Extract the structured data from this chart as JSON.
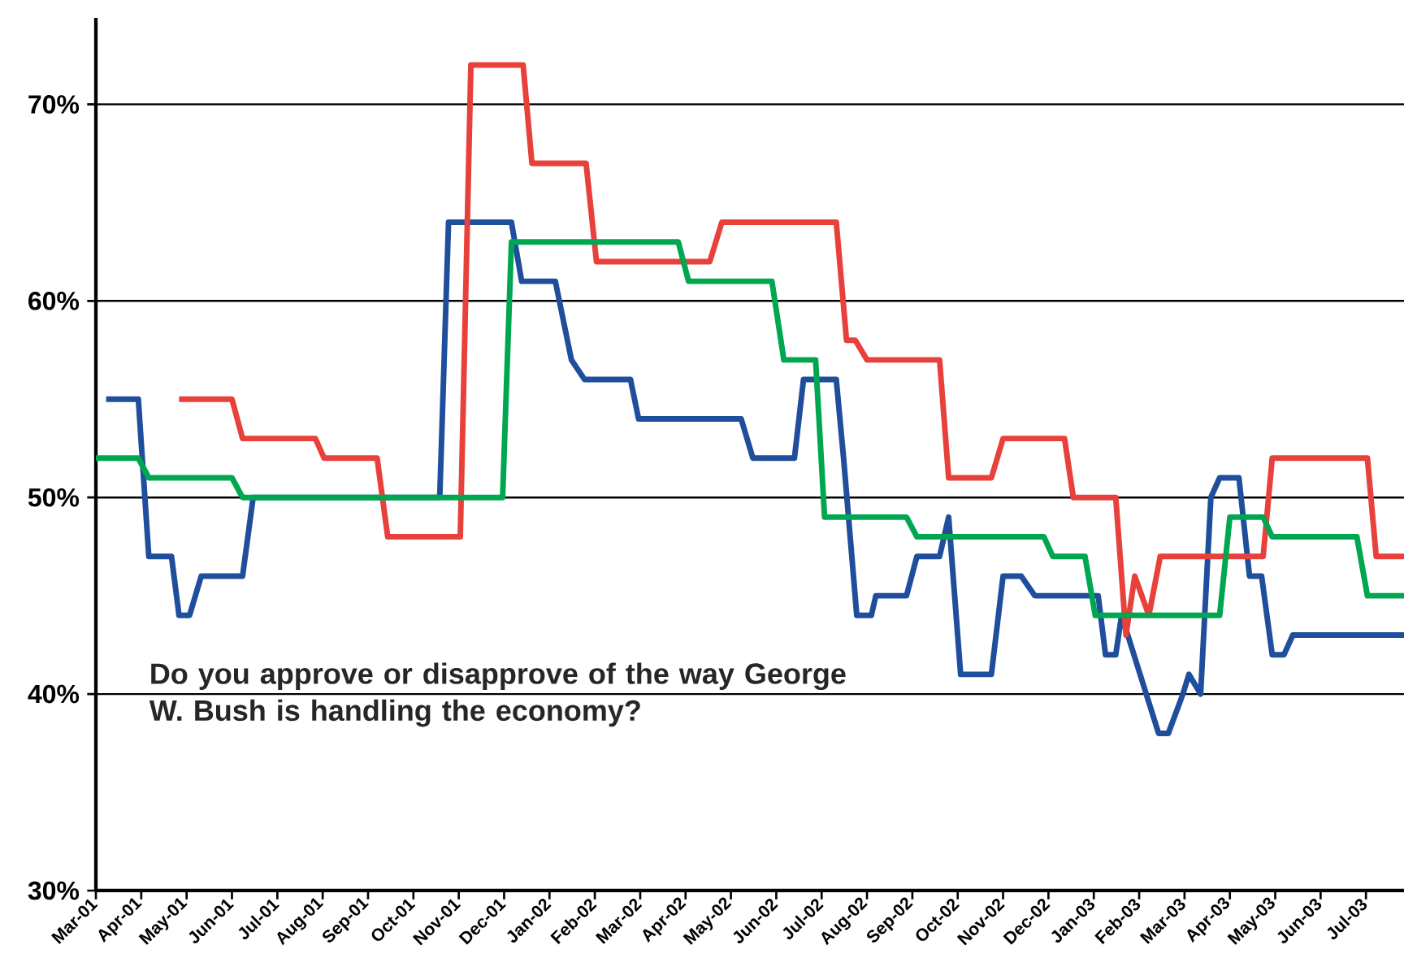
{
  "chart_data": {
    "type": "line",
    "title": "Do you approve or disapprove of the way George W. Bush is handling the economy?",
    "xlim": [
      "2001-03-01",
      "2003-07-27"
    ],
    "ylim": [
      30,
      74.4
    ],
    "xticks": [
      {
        "value": "2001-03",
        "label": "Mar-01"
      },
      {
        "value": "2001-04",
        "label": "Apr-01"
      },
      {
        "value": "2001-05",
        "label": "May-01"
      },
      {
        "value": "2001-06",
        "label": "Jun-01"
      },
      {
        "value": "2001-07",
        "label": "Jul-01"
      },
      {
        "value": "2001-08",
        "label": "Aug-01"
      },
      {
        "value": "2001-09",
        "label": "Sep-01"
      },
      {
        "value": "2001-10",
        "label": "Oct-01"
      },
      {
        "value": "2001-11",
        "label": "Nov-01"
      },
      {
        "value": "2001-12",
        "label": "Dec-01"
      },
      {
        "value": "2002-01",
        "label": "Jan-02"
      },
      {
        "value": "2002-02",
        "label": "Feb-02"
      },
      {
        "value": "2002-03",
        "label": "Mar-02"
      },
      {
        "value": "2002-04",
        "label": "Apr-02"
      },
      {
        "value": "2002-05",
        "label": "May-02"
      },
      {
        "value": "2002-06",
        "label": "Jun-02"
      },
      {
        "value": "2002-07",
        "label": "Jul-02"
      },
      {
        "value": "2002-08",
        "label": "Aug-02"
      },
      {
        "value": "2002-09",
        "label": "Sep-02"
      },
      {
        "value": "2002-10",
        "label": "Oct-02"
      },
      {
        "value": "2002-11",
        "label": "Nov-02"
      },
      {
        "value": "2002-12",
        "label": "Dec-02"
      },
      {
        "value": "2003-01",
        "label": "Jan-03"
      },
      {
        "value": "2003-02",
        "label": "Feb-03"
      },
      {
        "value": "2003-03",
        "label": "Mar-03"
      },
      {
        "value": "2003-04",
        "label": "Apr-03"
      },
      {
        "value": "2003-05",
        "label": "May-03"
      },
      {
        "value": "2003-06",
        "label": "Jun-03"
      },
      {
        "value": "2003-07",
        "label": "Jul-03"
      }
    ],
    "yticks": [
      {
        "value": 30,
        "label": "30%"
      },
      {
        "value": 40,
        "label": "40%"
      },
      {
        "value": 50,
        "label": "50%"
      },
      {
        "value": 60,
        "label": "60%"
      },
      {
        "value": 70,
        "label": "70%"
      }
    ],
    "grid": "y",
    "marker": "none",
    "line_style": "solid",
    "series": [
      {
        "color": "#1f4e9c",
        "x": [
          "2001-03-08",
          "2001-03-30",
          "2001-04-06",
          "2001-04-21",
          "2001-04-26",
          "2001-05-03",
          "2001-05-11",
          "2001-06-08",
          "2001-06-15",
          "2001-10-19",
          "2001-10-25",
          "2001-12-06",
          "2001-12-13",
          "2002-01-05",
          "2002-01-16",
          "2002-01-25",
          "2002-02-23",
          "2002-02-28",
          "2002-05-08",
          "2002-05-16",
          "2002-06-13",
          "2002-06-19",
          "2002-07-11",
          "2002-07-16",
          "2002-07-25",
          "2002-08-04",
          "2002-08-07",
          "2002-08-28",
          "2002-09-04",
          "2002-09-19",
          "2002-09-25",
          "2002-10-03",
          "2002-10-24",
          "2002-11-01",
          "2002-11-13",
          "2002-11-22",
          "2003-01-04",
          "2003-01-09",
          "2003-01-16",
          "2003-01-20",
          "2003-02-13",
          "2003-02-19",
          "2003-02-28",
          "2003-03-04",
          "2003-03-12",
          "2003-03-19",
          "2003-03-25",
          "2003-04-07",
          "2003-04-14",
          "2003-04-22",
          "2003-04-29",
          "2003-05-07",
          "2003-05-13",
          "2003-07-27"
        ],
        "values": [
          55,
          55,
          47,
          47,
          44,
          44,
          46,
          46,
          50,
          50,
          64,
          64,
          61,
          61,
          57,
          56,
          56,
          54,
          54,
          52,
          52,
          56,
          56,
          52,
          44,
          44,
          45,
          45,
          47,
          47,
          49,
          41,
          41,
          46,
          46,
          45,
          45,
          42,
          42,
          44,
          38,
          38,
          40,
          41,
          40,
          50,
          51,
          51,
          46,
          46,
          42,
          42,
          43,
          43
        ]
      },
      {
        "color": "#e8403a",
        "x": [
          "2001-04-26",
          "2001-06-01",
          "2001-06-08",
          "2001-07-27",
          "2001-08-02",
          "2001-09-07",
          "2001-09-14",
          "2001-11-02",
          "2001-11-09",
          "2001-12-14",
          "2001-12-20",
          "2002-01-26",
          "2002-02-02",
          "2002-04-17",
          "2002-04-25",
          "2002-07-11",
          "2002-07-18",
          "2002-07-24",
          "2002-08-01",
          "2002-09-19",
          "2002-09-25",
          "2002-10-24",
          "2002-11-01",
          "2002-12-12",
          "2002-12-18",
          "2003-01-16",
          "2003-01-23",
          "2003-01-29",
          "2003-02-07",
          "2003-02-14",
          "2003-04-23",
          "2003-04-29",
          "2003-07-02",
          "2003-07-08",
          "2003-07-27"
        ],
        "values": [
          55,
          55,
          53,
          53,
          52,
          52,
          48,
          48,
          72,
          72,
          67,
          67,
          62,
          62,
          64,
          64,
          58,
          58,
          57,
          57,
          51,
          51,
          53,
          53,
          50,
          50,
          43,
          46,
          44,
          47,
          47,
          52,
          52,
          47,
          47
        ]
      },
      {
        "color": "#00a650",
        "x": [
          "2001-03-01",
          "2001-03-30",
          "2001-04-06",
          "2001-06-01",
          "2001-06-08",
          "2001-11-30",
          "2001-12-06",
          "2002-03-27",
          "2002-04-03",
          "2002-05-29",
          "2002-06-06",
          "2002-06-27",
          "2002-07-03",
          "2002-08-28",
          "2002-09-04",
          "2002-11-28",
          "2002-12-04",
          "2002-12-26",
          "2003-01-02",
          "2003-03-25",
          "2003-04-01",
          "2003-04-23",
          "2003-04-29",
          "2003-06-25",
          "2003-07-02",
          "2003-07-27"
        ],
        "values": [
          52,
          52,
          51,
          51,
          50,
          50,
          63,
          63,
          61,
          61,
          57,
          57,
          49,
          49,
          48,
          48,
          47,
          47,
          44,
          44,
          49,
          49,
          48,
          48,
          45,
          45
        ]
      }
    ]
  }
}
